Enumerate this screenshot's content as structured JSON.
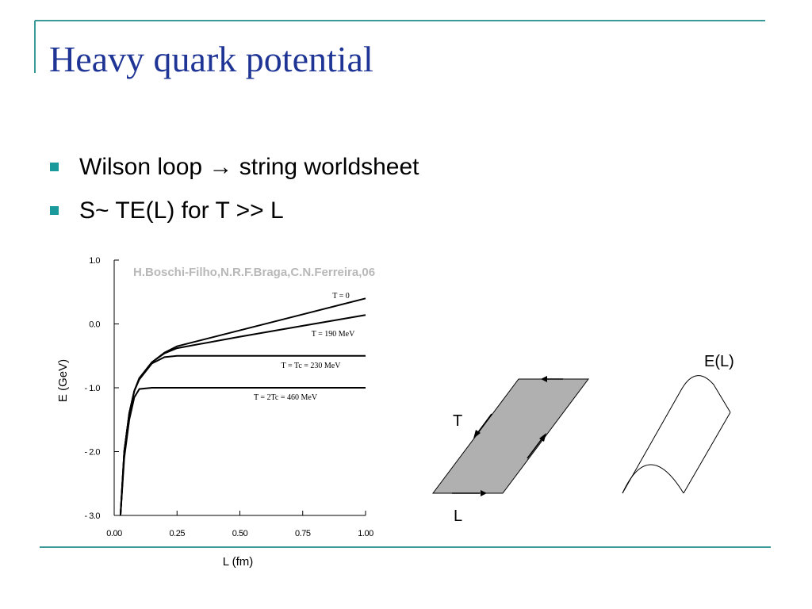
{
  "header": {
    "title": "Heavy quark potential"
  },
  "bullets": [
    "Wilson loop → string worldsheet",
    "S~ TE(L) for T >> L"
  ],
  "chart_data": {
    "type": "line",
    "annotation": "H.Boschi-Filho,N.R.F.Braga,C.N.Ferreira,06",
    "x_label": "L (fm)",
    "y_label": "E (GeV)",
    "x": [
      0.025,
      0.04,
      0.06,
      0.08,
      0.1,
      0.15,
      0.2,
      0.25,
      0.5,
      0.75,
      1.0
    ],
    "series": [
      {
        "name": "T = 0",
        "color": "#000000",
        "values": [
          -3.0,
          -2.0,
          -1.4,
          -1.05,
          -0.85,
          -0.6,
          -0.45,
          -0.35,
          -0.1,
          0.15,
          0.4
        ]
      },
      {
        "name": "T = 190 MeV",
        "color": "#000000",
        "values": [
          -3.0,
          -2.0,
          -1.4,
          -1.05,
          -0.85,
          -0.6,
          -0.46,
          -0.38,
          -0.2,
          -0.03,
          0.14
        ]
      },
      {
        "name": "T = Tc = 230 MeV",
        "color": "#000000",
        "values": [
          -3.0,
          -2.0,
          -1.4,
          -1.05,
          -0.87,
          -0.62,
          -0.52,
          -0.5,
          -0.5,
          -0.5,
          -0.5
        ]
      },
      {
        "name": "T = 2Tc = 460 MeV",
        "color": "#000000",
        "values": [
          -3.0,
          -2.1,
          -1.5,
          -1.15,
          -1.02,
          -1.0,
          -1.0,
          -1.0,
          -1.0,
          -1.0,
          -1.0
        ]
      }
    ],
    "xlim": [
      0,
      1.0
    ],
    "ylim": [
      -3.0,
      1.0
    ],
    "xticks": [
      {
        "value": 0,
        "label": "0.00"
      },
      {
        "value": 0.25,
        "label": "0.25"
      },
      {
        "value": 0.5,
        "label": "0.50"
      },
      {
        "value": 0.75,
        "label": "0.75"
      },
      {
        "value": 1.0,
        "label": "1.00"
      }
    ],
    "yticks": [
      {
        "value": 1.0,
        "label": "1.0"
      },
      {
        "value": 0,
        "label": "0.0"
      },
      {
        "value": -1.0,
        "label": "- 1.0"
      },
      {
        "value": -2.0,
        "label": "- 2.0"
      },
      {
        "value": -3.0,
        "label": "- 3.0"
      }
    ]
  },
  "diagram": {
    "t_label": "T",
    "l_label": "L",
    "curve_label": "E(L)"
  }
}
